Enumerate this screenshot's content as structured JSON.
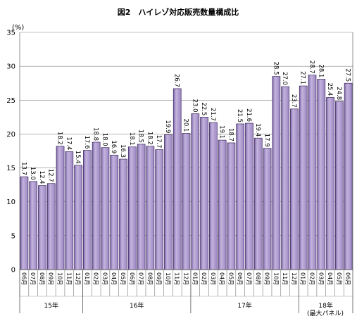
{
  "chart_data": {
    "type": "bar",
    "title": "図2　ハイレゾ対応販売数量構成比",
    "ylabel": "(%)",
    "ylim": [
      0,
      35
    ],
    "yticks": [
      0,
      5,
      10,
      15,
      20,
      25,
      30,
      35
    ],
    "grid": true,
    "bar_color": "#9d86c2",
    "categories": [
      "06月",
      "07月",
      "08月",
      "09月",
      "10月",
      "11月",
      "12月",
      "01月",
      "02月",
      "03月",
      "04月",
      "05月",
      "06月",
      "07月",
      "08月",
      "09月",
      "10月",
      "11月",
      "12月",
      "01月",
      "02月",
      "03月",
      "04月",
      "05月",
      "06月",
      "07月",
      "08月",
      "09月",
      "10月",
      "11月",
      "12月",
      "01月",
      "02月",
      "03月",
      "04月",
      "05月",
      "06月"
    ],
    "values": [
      13.7,
      13.0,
      12.4,
      12.7,
      18.2,
      17.4,
      15.4,
      17.6,
      18.8,
      18.0,
      16.9,
      16.3,
      18.1,
      18.5,
      18.2,
      17.7,
      19.9,
      26.7,
      20.1,
      23.0,
      22.5,
      21.7,
      19.1,
      18.7,
      21.5,
      21.6,
      19.4,
      17.9,
      28.5,
      27.0,
      23.7,
      27.1,
      28.7,
      28.1,
      25.4,
      24.8,
      27.5
    ],
    "value_labels": [
      "13.7",
      "13.0",
      "12.4",
      "12.7",
      "18.2",
      "17.4",
      "15.4",
      "17.6",
      "18.8",
      "18.0",
      "16.9",
      "16.3",
      "18.1",
      "18.5",
      "18.2",
      "17.7",
      "19.9",
      "26.7",
      "20.1",
      "23.0",
      "22.5",
      "21.7",
      "19.1",
      "18.7",
      "21.5",
      "21.6",
      "19.4",
      "17.9",
      "28.5",
      "27.0",
      "23.7",
      "27.1",
      "28.7",
      "28.1",
      "25.4",
      "24.8",
      "27.5"
    ],
    "years": [
      {
        "label": "15年",
        "start": 0,
        "end": 6
      },
      {
        "label": "16年",
        "start": 7,
        "end": 18
      },
      {
        "label": "17年",
        "start": 19,
        "end": 30
      },
      {
        "label": "18年",
        "start": 31,
        "end": 36
      }
    ],
    "footnote": "(最大パネル)"
  }
}
